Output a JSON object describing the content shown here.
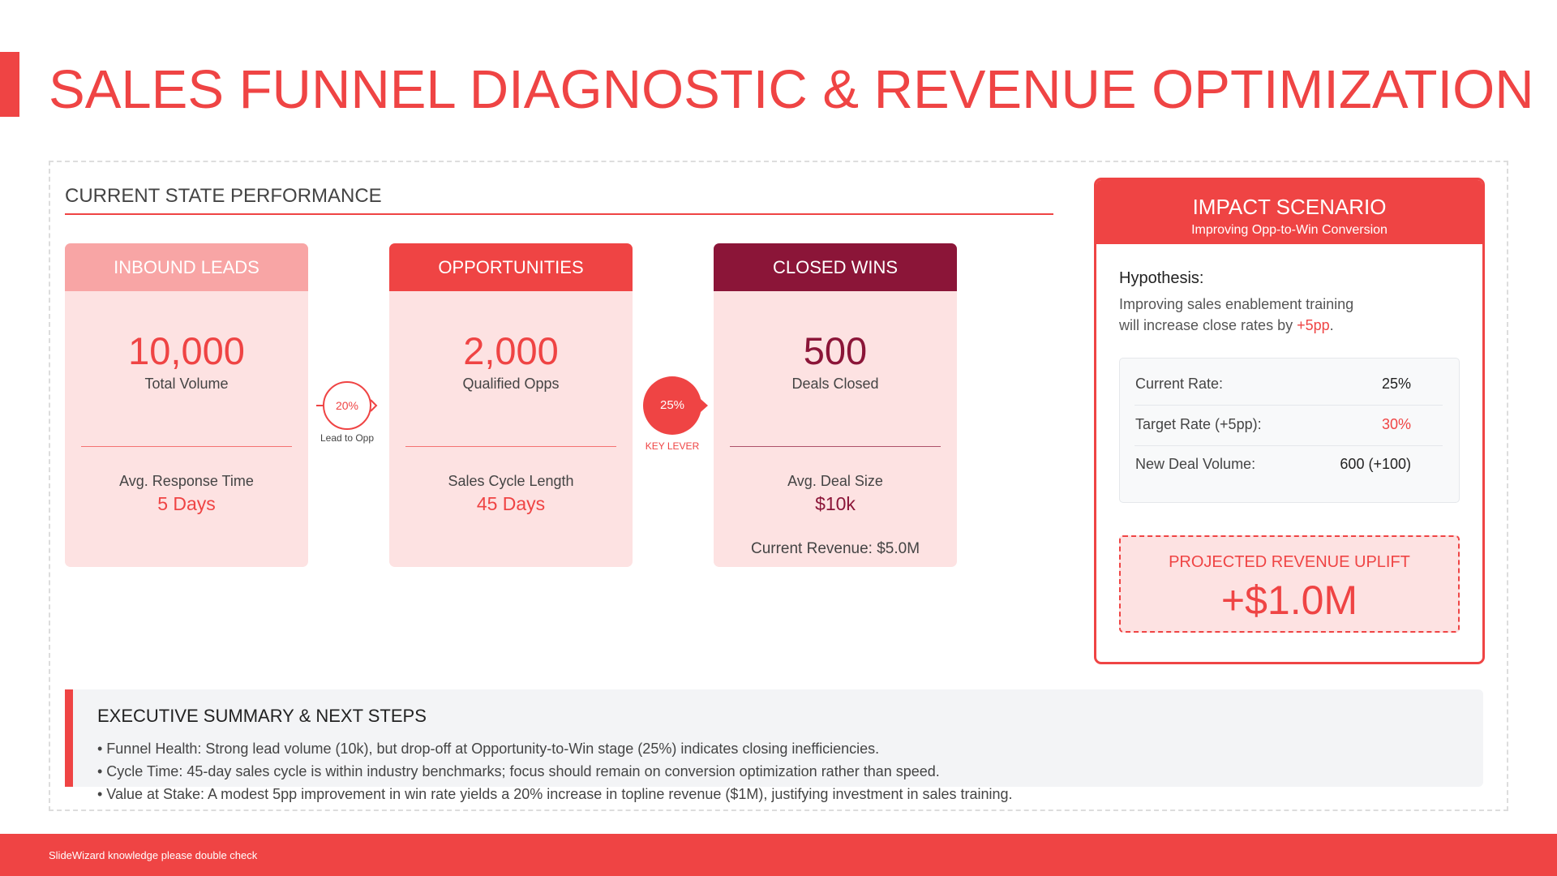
{
  "header": {
    "title": "SALES FUNNEL DIAGNOSTIC & REVENUE OPTIMIZATION"
  },
  "performance": {
    "title": "CURRENT STATE PERFORMANCE",
    "stages": [
      {
        "title": "INBOUND LEADS",
        "value": "10,000",
        "label": "Total Volume",
        "metric_label": "Avg. Response Time",
        "metric_value": "5 Days"
      },
      {
        "title": "OPPORTUNITIES",
        "value": "2,000",
        "label": "Qualified Opps",
        "metric_label": "Sales Cycle Length",
        "metric_value": "45 Days"
      },
      {
        "title": "CLOSED WINS",
        "value": "500",
        "label": "Deals Closed",
        "metric_label": "Avg. Deal Size",
        "metric_value": "$10k",
        "note": "Current Revenue: $5.0M"
      }
    ],
    "conversions": [
      {
        "value": "20%",
        "label": "Lead to Opp"
      },
      {
        "value": "25%",
        "label": "KEY LEVER"
      }
    ]
  },
  "impact": {
    "title": "IMPACT SCENARIO",
    "subtitle": "Improving Opp-to-Win Conversion",
    "hypothesis_label": "Hypothesis:",
    "hypothesis_text": "Improving sales enablement training will increase close rates by ",
    "hypothesis_highlight": "+5pp",
    "hypothesis_end": ".",
    "rows": [
      [
        "Current Rate:",
        "25%"
      ],
      [
        "Target Rate (+5pp):",
        "30%"
      ],
      [
        "New Deal Volume:",
        "600 (+100)"
      ]
    ],
    "uplift_label": "PROJECTED REVENUE UPLIFT",
    "uplift_value": "+$1.0M"
  },
  "summary": {
    "title": "EXECUTIVE SUMMARY & NEXT STEPS",
    "bullets": [
      "• Funnel Health: Strong lead volume (10k), but drop-off at Opportunity-to-Win stage (25%) indicates closing inefficiencies.",
      "• Cycle Time: 45-day sales cycle is within industry benchmarks; focus should remain on conversion optimization rather than speed.",
      "• Value at Stake: A modest 5pp improvement in win rate yields a 20% increase in topline revenue ($1M), justifying investment in sales training."
    ]
  },
  "footer": {
    "text": "SlideWizard knowledge please double check"
  }
}
